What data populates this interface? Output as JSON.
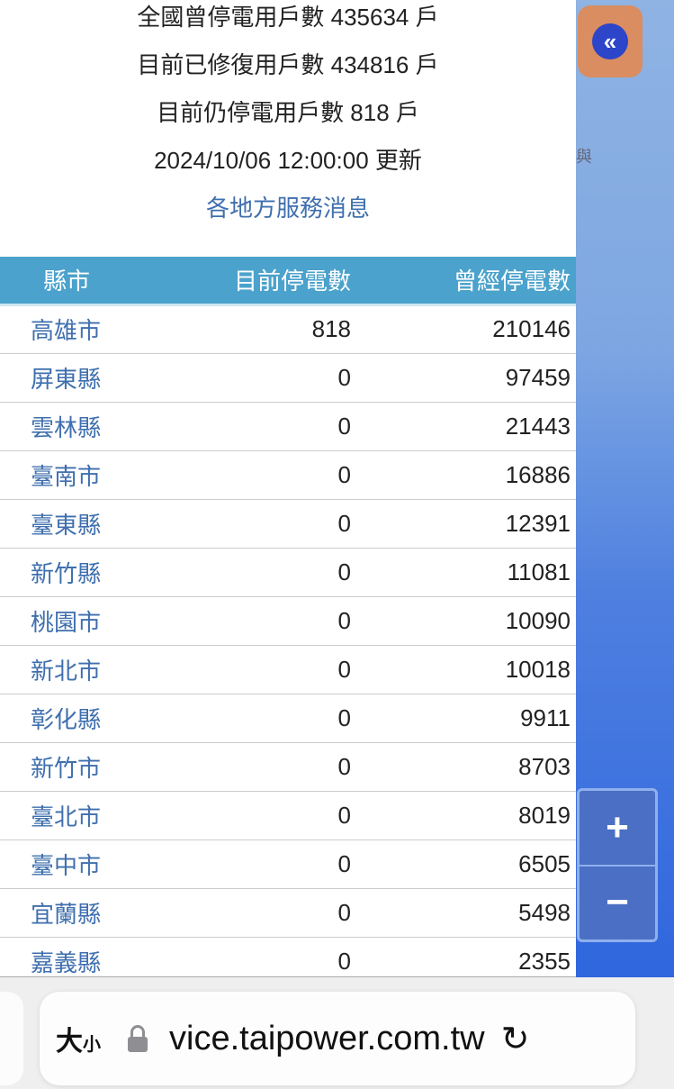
{
  "summary": {
    "total_outage": "全國曾停電用戶數 435634 戶",
    "restored": "目前已修復用戶數 434816 戶",
    "current_outage": "目前仍停電用戶數 818 戶",
    "updated": "2024/10/06 12:00:00 更新",
    "service_link": "各地方服務消息"
  },
  "table": {
    "headers": [
      "縣市",
      "目前停電數",
      "曾經停電數"
    ],
    "rows": [
      [
        "高雄市",
        "818",
        "210146"
      ],
      [
        "屏東縣",
        "0",
        "97459"
      ],
      [
        "雲林縣",
        "0",
        "21443"
      ],
      [
        "臺南市",
        "0",
        "16886"
      ],
      [
        "臺東縣",
        "0",
        "12391"
      ],
      [
        "新竹縣",
        "0",
        "11081"
      ],
      [
        "桃園市",
        "0",
        "10090"
      ],
      [
        "新北市",
        "0",
        "10018"
      ],
      [
        "彰化縣",
        "0",
        "9911"
      ],
      [
        "新竹市",
        "0",
        "8703"
      ],
      [
        "臺北市",
        "0",
        "8019"
      ],
      [
        "臺中市",
        "0",
        "6505"
      ],
      [
        "宜蘭縣",
        "0",
        "5498"
      ],
      [
        "嘉義縣",
        "0",
        "2355"
      ]
    ]
  },
  "map": {
    "label": "與",
    "collapse": "«",
    "zoom_in": "+",
    "zoom_out": "−"
  },
  "browser": {
    "text_size": "大",
    "text_size_small": "小",
    "url": "vice.taipower.com.tw",
    "reload": "↻"
  },
  "colors": {
    "header": "#4ba2cc",
    "link": "#3f6fae",
    "collapse_button": "#d98d60"
  }
}
